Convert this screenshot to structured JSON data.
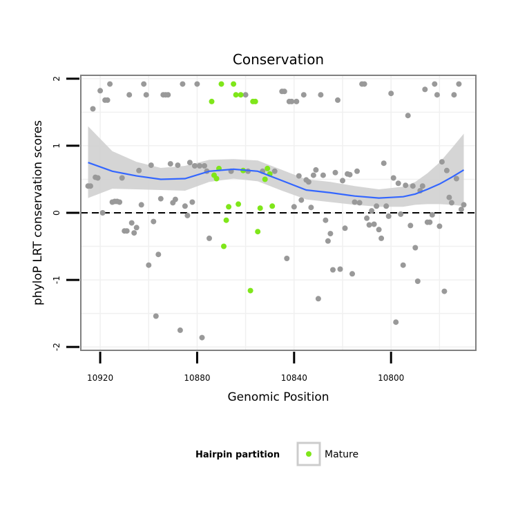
{
  "chart_data": {
    "type": "scatter",
    "title": "Conservation",
    "xlabel": "Genomic Position",
    "ylabel": "phyloP LRT conservation scores",
    "x_reversed": true,
    "xlim": [
      10928,
      10765
    ],
    "ylim": [
      -2.05,
      2.05
    ],
    "x_ticks": [
      10920,
      10880,
      10840,
      10800
    ],
    "y_ticks": [
      -2,
      -1,
      0,
      1,
      2
    ],
    "grid": true,
    "reference_line": {
      "y": 0,
      "style": "dashed"
    },
    "colors": {
      "other": "#999999",
      "mature": "#7fe61a",
      "smooth": "#3366ff",
      "band": "#d0d0d0",
      "panel_border": "#7f7f7f"
    },
    "legend": {
      "title": "Hairpin partition",
      "entries": [
        {
          "label": "Mature",
          "color": "#7fe61a"
        }
      ],
      "placement": "bottom"
    },
    "series": [
      {
        "role": "other",
        "points": [
          [
            10925,
            0.4
          ],
          [
            10924,
            0.4
          ],
          [
            10923,
            1.55
          ],
          [
            10922,
            0.53
          ],
          [
            10921,
            0.52
          ],
          [
            10920,
            1.82
          ],
          [
            10919,
            0.0
          ],
          [
            10918,
            1.68
          ],
          [
            10917,
            1.68
          ],
          [
            10916,
            1.92
          ],
          [
            10915,
            0.16
          ],
          [
            10914,
            0.17
          ],
          [
            10913,
            0.17
          ],
          [
            10912,
            0.16
          ],
          [
            10911,
            0.52
          ],
          [
            10910,
            -0.27
          ],
          [
            10909,
            -0.27
          ],
          [
            10908,
            1.76
          ],
          [
            10907,
            -0.15
          ],
          [
            10906,
            -0.3
          ],
          [
            10905,
            -0.22
          ],
          [
            10904,
            0.63
          ],
          [
            10903,
            0.12
          ],
          [
            10902,
            1.92
          ],
          [
            10901,
            1.76
          ],
          [
            10900,
            -0.78
          ],
          [
            10899,
            0.71
          ],
          [
            10898,
            -0.13
          ],
          [
            10897,
            -1.54
          ],
          [
            10896,
            -0.62
          ],
          [
            10895,
            0.21
          ],
          [
            10894,
            1.76
          ],
          [
            10893,
            1.76
          ],
          [
            10892,
            1.76
          ],
          [
            10891,
            0.73
          ],
          [
            10890,
            0.15
          ],
          [
            10889,
            0.2
          ],
          [
            10888,
            0.71
          ],
          [
            10887,
            -1.75
          ],
          [
            10886,
            1.92
          ],
          [
            10885,
            0.1
          ],
          [
            10884,
            -0.04
          ],
          [
            10883,
            0.75
          ],
          [
            10882,
            0.16
          ],
          [
            10881,
            0.7
          ],
          [
            10880,
            1.92
          ],
          [
            10879,
            0.7
          ],
          [
            10878,
            -1.86
          ],
          [
            10877,
            0.7
          ],
          [
            10876,
            0.62
          ],
          [
            10875,
            -0.38
          ],
          [
            10866,
            0.62
          ],
          [
            10860,
            1.76
          ],
          [
            10859,
            0.62
          ],
          [
            10853,
            0.62
          ],
          [
            10848,
            0.62
          ],
          [
            10845,
            1.81
          ],
          [
            10844,
            1.81
          ],
          [
            10843,
            -0.68
          ],
          [
            10842,
            1.66
          ],
          [
            10841,
            1.66
          ],
          [
            10840,
            0.09
          ],
          [
            10839,
            1.66
          ],
          [
            10838,
            0.55
          ],
          [
            10837,
            0.19
          ],
          [
            10836,
            1.76
          ],
          [
            10835,
            0.49
          ],
          [
            10834,
            0.46
          ],
          [
            10833,
            0.08
          ],
          [
            10832,
            0.56
          ],
          [
            10831,
            0.64
          ],
          [
            10830,
            -1.28
          ],
          [
            10829,
            1.76
          ],
          [
            10828,
            0.56
          ],
          [
            10827,
            -0.11
          ],
          [
            10826,
            -0.42
          ],
          [
            10825,
            -0.31
          ],
          [
            10824,
            -0.85
          ],
          [
            10823,
            0.6
          ],
          [
            10822,
            1.68
          ],
          [
            10821,
            -0.84
          ],
          [
            10820,
            0.48
          ],
          [
            10819,
            -0.23
          ],
          [
            10818,
            0.58
          ],
          [
            10817,
            0.57
          ],
          [
            10816,
            -0.91
          ],
          [
            10815,
            0.16
          ],
          [
            10814,
            0.62
          ],
          [
            10813,
            0.15
          ],
          [
            10812,
            1.92
          ],
          [
            10811,
            1.92
          ],
          [
            10810,
            -0.08
          ],
          [
            10809,
            -0.18
          ],
          [
            10808,
            0.03
          ],
          [
            10807,
            -0.17
          ],
          [
            10806,
            0.1
          ],
          [
            10805,
            -0.25
          ],
          [
            10804,
            -0.38
          ],
          [
            10803,
            0.74
          ],
          [
            10802,
            0.1
          ],
          [
            10801,
            -0.05
          ],
          [
            10800,
            1.78
          ],
          [
            10799,
            0.52
          ],
          [
            10798,
            -1.63
          ],
          [
            10797,
            0.44
          ],
          [
            10796,
            -0.02
          ],
          [
            10795,
            -0.78
          ],
          [
            10794,
            0.41
          ],
          [
            10793,
            1.45
          ],
          [
            10792,
            -0.19
          ],
          [
            10791,
            0.4
          ],
          [
            10790,
            -0.52
          ],
          [
            10789,
            -1.02
          ],
          [
            10788,
            0.33
          ],
          [
            10787,
            0.4
          ],
          [
            10786,
            1.84
          ],
          [
            10785,
            -0.14
          ],
          [
            10784,
            -0.14
          ],
          [
            10783,
            -0.03
          ],
          [
            10782,
            1.92
          ],
          [
            10781,
            1.76
          ],
          [
            10780,
            -0.2
          ],
          [
            10779,
            0.76
          ],
          [
            10778,
            -1.17
          ],
          [
            10777,
            0.63
          ],
          [
            10776,
            0.23
          ],
          [
            10775,
            0.15
          ],
          [
            10774,
            1.76
          ],
          [
            10773,
            0.51
          ],
          [
            10772,
            1.92
          ],
          [
            10771,
            0.05
          ],
          [
            10770,
            0.12
          ]
        ]
      },
      {
        "name": "Mature",
        "role": "mature",
        "points": [
          [
            10874,
            1.66
          ],
          [
            10873,
            0.56
          ],
          [
            10872,
            0.51
          ],
          [
            10871,
            0.66
          ],
          [
            10870,
            1.92
          ],
          [
            10869,
            -0.5
          ],
          [
            10868,
            -0.11
          ],
          [
            10867,
            0.09
          ],
          [
            10865,
            1.92
          ],
          [
            10864,
            1.76
          ],
          [
            10863,
            0.13
          ],
          [
            10862,
            1.76
          ],
          [
            10861,
            0.63
          ],
          [
            10858,
            -1.16
          ],
          [
            10857,
            1.66
          ],
          [
            10856,
            1.66
          ],
          [
            10855,
            -0.28
          ],
          [
            10854,
            0.07
          ],
          [
            10852,
            0.5
          ],
          [
            10851,
            0.66
          ],
          [
            10850,
            0.58
          ],
          [
            10849,
            0.1
          ]
        ]
      }
    ],
    "smooth": {
      "x": [
        10925,
        10915,
        10905,
        10895,
        10885,
        10875,
        10865,
        10855,
        10845,
        10835,
        10825,
        10815,
        10805,
        10800,
        10795,
        10790,
        10785,
        10780,
        10775,
        10770
      ],
      "y": [
        0.75,
        0.62,
        0.55,
        0.5,
        0.51,
        0.62,
        0.65,
        0.62,
        0.48,
        0.34,
        0.3,
        0.25,
        0.22,
        0.23,
        0.24,
        0.28,
        0.35,
        0.43,
        0.53,
        0.64
      ],
      "lower": [
        0.22,
        0.36,
        0.35,
        0.34,
        0.33,
        0.46,
        0.51,
        0.47,
        0.33,
        0.2,
        0.16,
        0.12,
        0.09,
        0.09,
        0.09,
        0.12,
        0.13,
        0.13,
        0.12,
        0.1
      ],
      "upper": [
        1.29,
        0.92,
        0.76,
        0.67,
        0.7,
        0.79,
        0.8,
        0.78,
        0.64,
        0.5,
        0.46,
        0.4,
        0.35,
        0.37,
        0.39,
        0.46,
        0.59,
        0.75,
        0.96,
        1.18
      ]
    }
  }
}
